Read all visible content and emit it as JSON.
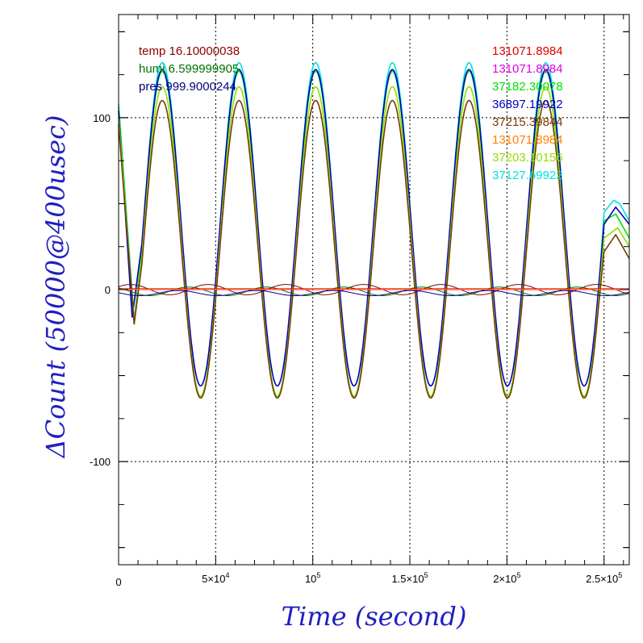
{
  "chart_data": {
    "type": "line",
    "xlabel": "Time (second)",
    "ylabel": "ΔCount (50000@400usec)",
    "xlim": [
      0,
      263000
    ],
    "ylim": [
      -160,
      160
    ],
    "grid": true,
    "x_ticks": [
      {
        "value": 0,
        "label": "0",
        "sup": ""
      },
      {
        "value": 50000,
        "label": "5×10",
        "sup": "4"
      },
      {
        "value": 100000,
        "label": "10",
        "sup": "5"
      },
      {
        "value": 150000,
        "label": "1.5×10",
        "sup": "5"
      },
      {
        "value": 200000,
        "label": "2×10",
        "sup": "5"
      },
      {
        "value": 250000,
        "label": "2.5×10",
        "sup": "5"
      }
    ],
    "y_ticks": [
      {
        "value": 100,
        "label": "100"
      },
      {
        "value": 0,
        "label": "0"
      },
      {
        "value": -100,
        "label": "-100"
      }
    ],
    "legend_left": [
      {
        "text": "temp 16.10000038",
        "color": "#8b0000"
      },
      {
        "text": "humi 6.599999905",
        "color": "#007000"
      },
      {
        "text": "pres 999.9000244",
        "color": "#00007a"
      }
    ],
    "legend_right": [
      {
        "text": "131071.8984",
        "color": "#e00000"
      },
      {
        "text": "131071.8984",
        "color": "#e000e0"
      },
      {
        "text": "37182.30078",
        "color": "#00e000"
      },
      {
        "text": "36897.19922",
        "color": "#0000c0"
      },
      {
        "text": "37215.39844",
        "color": "#7a3a00"
      },
      {
        "text": "131071.8984",
        "color": "#ff8000"
      },
      {
        "text": "37203.10156",
        "color": "#90e000"
      },
      {
        "text": "37127.69922",
        "color": "#00e0e0"
      }
    ],
    "series": [
      {
        "key": "cyan",
        "color": "#00e0e0",
        "period": 39500,
        "peak": 132,
        "trough": -63,
        "points": [
          [
            0,
            108
          ],
          [
            8000,
            -18
          ],
          [
            22000,
            128
          ],
          [
            40000,
            -58
          ],
          [
            44000,
            -63
          ]
        ],
        "tail": [
          [
            250000,
            45
          ],
          [
            255000,
            52
          ],
          [
            258000,
            50
          ],
          [
            263000,
            40
          ]
        ]
      },
      {
        "key": "green",
        "color": "#00e000",
        "period": 39500,
        "peak": 127,
        "trough": -62,
        "points": [
          [
            0,
            106
          ],
          [
            8000,
            -20
          ],
          [
            22000,
            124
          ],
          [
            44000,
            -62
          ]
        ],
        "tail": [
          [
            250000,
            40
          ],
          [
            256000,
            44
          ],
          [
            263000,
            30
          ]
        ]
      },
      {
        "key": "blue",
        "color": "#0000c0",
        "period": 39500,
        "peak": 128,
        "trough": -56,
        "points": [
          [
            0,
            104
          ],
          [
            7000,
            -16
          ],
          [
            22000,
            125
          ],
          [
            43000,
            -56
          ]
        ],
        "tail": [
          [
            250000,
            38
          ],
          [
            256000,
            48
          ],
          [
            263000,
            38
          ]
        ]
      },
      {
        "key": "yellowgreen",
        "color": "#90e000",
        "period": 39500,
        "peak": 118,
        "trough": -62,
        "points": [
          [
            0,
            100
          ],
          [
            8000,
            -19
          ],
          [
            22500,
            112
          ],
          [
            44000,
            -62
          ]
        ],
        "tail": [
          [
            250000,
            30
          ],
          [
            257000,
            36
          ],
          [
            263000,
            25
          ]
        ]
      },
      {
        "key": "brown",
        "color": "#7a3a00",
        "period": 39500,
        "peak": 110,
        "trough": -63,
        "points": [
          [
            0,
            96
          ],
          [
            8000,
            -20
          ],
          [
            23000,
            108
          ],
          [
            44000,
            -63
          ]
        ],
        "tail": [
          [
            250000,
            22
          ],
          [
            256000,
            32
          ],
          [
            263000,
            18
          ]
        ]
      },
      {
        "key": "temp",
        "color": "#8b0000",
        "period": 40000,
        "amplitude": 3,
        "offset": 0,
        "phase": 0.6
      },
      {
        "key": "humi",
        "color": "#007000",
        "period": 40000,
        "amplitude": 2.5,
        "offset": -1,
        "phase": 2.2
      },
      {
        "key": "pres",
        "color": "#00007a",
        "period": 40000,
        "amplitude": 1.5,
        "offset": -2,
        "phase": 3.0
      },
      {
        "key": "magenta",
        "color": "#e000e0",
        "flat": 0
      },
      {
        "key": "red",
        "color": "#e00000",
        "flat": 0.5
      },
      {
        "key": "orange",
        "color": "#ff8000",
        "flat": 0.2
      }
    ]
  }
}
